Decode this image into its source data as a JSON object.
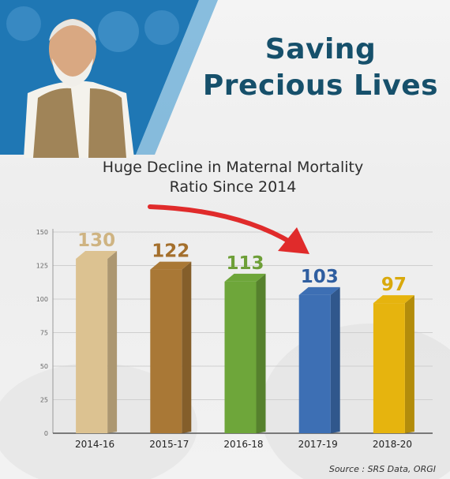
{
  "header": {
    "title_line1": "Saving",
    "title_line2": "Precious Lives"
  },
  "colors": {
    "title": "#16506b",
    "header_blue": "#1f77b4",
    "arrow": "#e02b2b"
  },
  "chart_data": {
    "type": "bar",
    "title": "Huge Decline in Maternal Mortality Ratio Since 2014",
    "title_lines": [
      "Huge Decline in Maternal Mortality",
      "Ratio Since 2014"
    ],
    "categories": [
      "2014-16",
      "2015-17",
      "2016-18",
      "2017-19",
      "2018-20"
    ],
    "values": [
      130,
      122,
      113,
      103,
      97
    ],
    "value_labels": [
      "130",
      "122",
      "113",
      "103",
      "97"
    ],
    "bar_colors": [
      "#dcc291",
      "#a97836",
      "#6ea63a",
      "#3d6fb4",
      "#e6b40e"
    ],
    "bar_label_colors": [
      "#cfb482",
      "#a46f2c",
      "#6e9f38",
      "#2f5ea0",
      "#d9a90c"
    ],
    "xlabel": "",
    "ylabel": "",
    "ylim": [
      0,
      150
    ],
    "yticks": [
      "0",
      "25",
      "50",
      "75",
      "100",
      "125",
      "150"
    ],
    "grid": true,
    "source": "Source : SRS Data, ORGI"
  }
}
